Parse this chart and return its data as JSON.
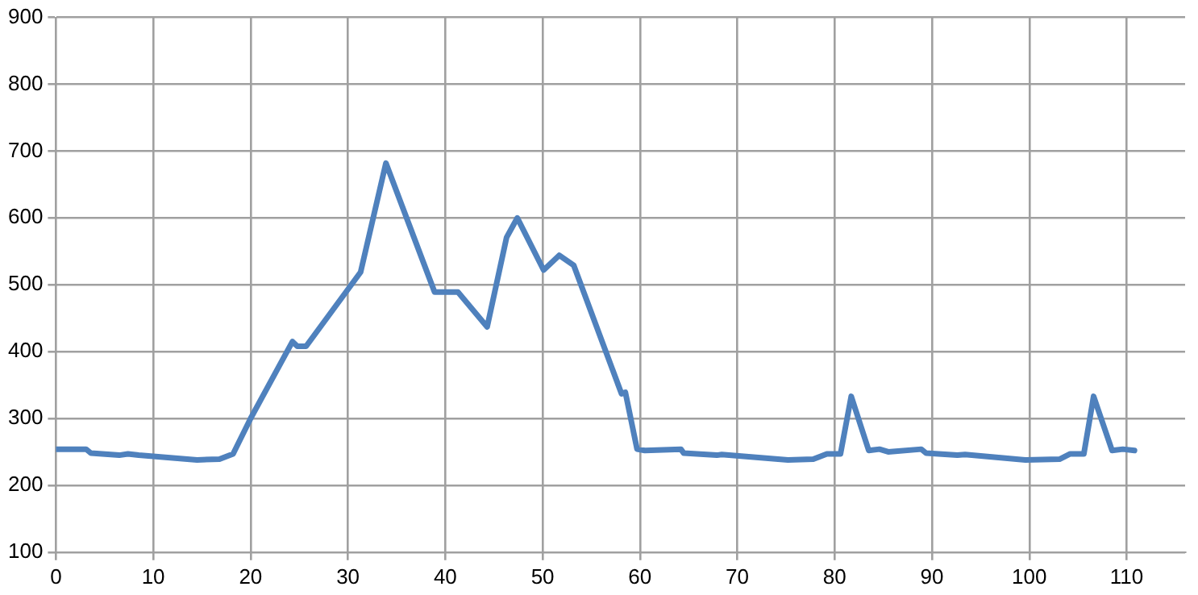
{
  "chart_data": {
    "type": "line",
    "x": [
      0,
      3.1,
      3.6,
      6.5,
      7.4,
      8.5,
      14.5,
      16.8,
      18.2,
      20,
      24.3,
      24.8,
      25.7,
      31.3,
      33.9,
      38.9,
      41.3,
      44.3,
      46.3,
      47.4,
      50.1,
      51.7,
      53.2,
      58.1,
      58.5,
      59.7,
      60.5,
      64.2,
      64.5,
      67.9,
      68.4,
      75.2,
      77.8,
      79.2,
      80.6,
      81.7,
      83.5,
      84.6,
      85.5,
      88.9,
      89.4,
      92.6,
      93.4,
      99.6,
      103.1,
      104.2,
      105.6,
      106.6,
      108.5,
      109.6,
      110.8
    ],
    "series": [
      {
        "color": "#4f81bd",
        "values": [
          254,
          254,
          248,
          245,
          247,
          245,
          238,
          239,
          247,
          300,
          415,
          408,
          408,
          519,
          682,
          489,
          489,
          437,
          571,
          600,
          522,
          544,
          529,
          337,
          339,
          254,
          252,
          254,
          248,
          245,
          246,
          238,
          239,
          247,
          247,
          333,
          252,
          254,
          250,
          254,
          248,
          245,
          246,
          238,
          239,
          247,
          247,
          333,
          252,
          254,
          252
        ]
      }
    ],
    "xlim": [
      0,
      116
    ],
    "xticks": [
      0,
      10,
      20,
      30,
      40,
      50,
      60,
      70,
      80,
      90,
      100,
      110
    ],
    "ylim": [
      100,
      900
    ],
    "yticks": [
      100,
      200,
      300,
      400,
      500,
      600,
      700,
      800,
      900
    ],
    "grid": true,
    "legend": false,
    "marker": "none",
    "line_style": "solid"
  }
}
